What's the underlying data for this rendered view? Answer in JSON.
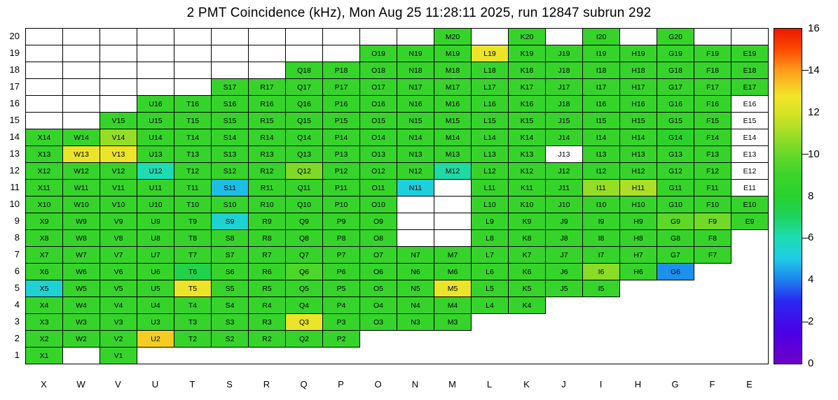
{
  "title": "2 PMT Coincidence (kHz), Mon Aug 25 11:28:11 2025, run 12847 subrun 292",
  "run_info": {
    "run": "12847",
    "subrun": "292",
    "timestamp": "Mon Aug 25 11:28:11 2025"
  },
  "chart_data": {
    "type": "heatmap",
    "title": "2 PMT Coincidence (kHz), Mon Aug 25 11:28:11 2025, run 12847 subrun 292",
    "unit": "kHz",
    "xlabel": "",
    "ylabel": "",
    "x_categories": [
      "X",
      "W",
      "V",
      "U",
      "T",
      "S",
      "R",
      "Q",
      "P",
      "O",
      "N",
      "M",
      "L",
      "K",
      "J",
      "I",
      "H",
      "G",
      "F",
      "E"
    ],
    "row_numbers": [
      20,
      19,
      18,
      17,
      16,
      15,
      14,
      13,
      12,
      11,
      10,
      9,
      8,
      7,
      6,
      5,
      4,
      3,
      2,
      1
    ],
    "grid": true,
    "legend_position": "right-colorbar",
    "colorbar": {
      "min": 0,
      "max": 16,
      "tick_values": [
        0,
        2,
        4,
        6,
        8,
        10,
        12,
        14,
        16
      ],
      "major_tick_values": [
        2,
        6,
        10,
        14
      ],
      "gradient_stops": [
        [
          0,
          "#6e00c8"
        ],
        [
          1.5,
          "#4b00e6"
        ],
        [
          3,
          "#2929f0"
        ],
        [
          4,
          "#1e82f0"
        ],
        [
          5,
          "#1ecce6"
        ],
        [
          6,
          "#1edcb4"
        ],
        [
          7,
          "#1ed25f"
        ],
        [
          8,
          "#28d22d"
        ],
        [
          9,
          "#3ad42a"
        ],
        [
          10,
          "#66d828"
        ],
        [
          11,
          "#a2de26"
        ],
        [
          12,
          "#d8e426"
        ],
        [
          12.8,
          "#f2e428"
        ],
        [
          14,
          "#ff9c1c"
        ],
        [
          15,
          "#ff4a00"
        ],
        [
          16,
          "#eb1800"
        ]
      ]
    },
    "cell_legend": {
      "number": "cell rate in kHz (estimated from color scale)",
      "b": "empty cell with grid border",
      "w": "labeled cell with white (no-data) fill",
      "null": "blank area, no cell drawn"
    },
    "rows": [
      [
        "b",
        "b",
        "b",
        "b",
        "b",
        "b",
        "b",
        "b",
        "b",
        "b",
        "b",
        8.8,
        "b",
        8.8,
        "b",
        8.8,
        "b",
        8.8,
        "b",
        "b"
      ],
      [
        "b",
        "b",
        "b",
        "b",
        "b",
        "b",
        "b",
        "b",
        "b",
        8.8,
        8.8,
        8.8,
        12.6,
        8.8,
        8.8,
        8.8,
        8.8,
        8.8,
        8.8,
        8.8
      ],
      [
        "b",
        "b",
        "b",
        "b",
        "b",
        "b",
        "b",
        8.8,
        8.8,
        8.8,
        8.8,
        8.8,
        8.8,
        8.8,
        8.8,
        8.8,
        8.8,
        8.8,
        8.8,
        8.8
      ],
      [
        "b",
        "b",
        "b",
        "b",
        "b",
        8.8,
        8.8,
        8.8,
        8.8,
        8.8,
        8.8,
        8.8,
        8.8,
        8.8,
        8.8,
        8.8,
        8.8,
        8.8,
        8.8,
        8.8
      ],
      [
        "b",
        "b",
        "b",
        8.8,
        8.8,
        8.8,
        8.8,
        8.8,
        8.8,
        8.8,
        8.8,
        8.8,
        8.8,
        8.8,
        {
          "v": 8.8,
          "l": "J18"
        },
        8.8,
        8.8,
        8.8,
        8.8,
        "w"
      ],
      [
        "b",
        "b",
        8.8,
        8.8,
        8.8,
        8.8,
        8.8,
        8.8,
        8.8,
        8.8,
        8.8,
        8.8,
        8.8,
        8.8,
        8.8,
        8.8,
        8.8,
        8.8,
        8.8,
        "w"
      ],
      [
        8.8,
        8.8,
        10.8,
        8.8,
        8.8,
        8.8,
        8.8,
        8.8,
        8.8,
        8.8,
        8.8,
        8.8,
        8.8,
        8.8,
        8.8,
        8.8,
        8.8,
        8.2,
        8.8,
        "w"
      ],
      [
        8.8,
        12.6,
        12.6,
        8.8,
        8.8,
        8.8,
        8.8,
        8.8,
        8.8,
        8.8,
        8.8,
        8.8,
        8.8,
        8.8,
        "w",
        8.8,
        8.8,
        8.8,
        8.8,
        "w"
      ],
      [
        8.8,
        8.8,
        8.8,
        6,
        8.8,
        8.8,
        8.8,
        10.4,
        8.8,
        8.8,
        8.8,
        6.2,
        8.8,
        8.8,
        8.8,
        8.8,
        8.8,
        8.8,
        8.8,
        "w"
      ],
      [
        8.8,
        8.8,
        8.8,
        8.8,
        8.8,
        4.8,
        8.8,
        8.8,
        8.8,
        8.8,
        5.2,
        "b",
        8.8,
        8.8,
        8.8,
        10.8,
        11.2,
        8.8,
        8.8,
        "w"
      ],
      [
        8.8,
        8.8,
        8.8,
        8.8,
        8.8,
        8.8,
        8.8,
        8.8,
        8.8,
        8.8,
        "b",
        "b",
        8.8,
        8.8,
        8.8,
        8.8,
        8.8,
        8.8,
        8.8,
        8.8
      ],
      [
        8.8,
        8.8,
        8.8,
        8.8,
        8.8,
        5.4,
        8.8,
        8.8,
        8.8,
        8.8,
        "b",
        "b",
        8.8,
        8.8,
        8.8,
        8.8,
        8.8,
        9.8,
        10.2,
        8.8
      ],
      [
        8.8,
        8.8,
        8.8,
        8.8,
        8.8,
        8.8,
        8.8,
        8.8,
        8.8,
        8.8,
        "b",
        "b",
        8.8,
        8.8,
        8.8,
        8.8,
        8.8,
        8.8,
        8.8,
        null
      ],
      [
        8.8,
        8.8,
        8.8,
        8.8,
        8.8,
        8.8,
        8.8,
        8.8,
        8.8,
        8.8,
        8.8,
        8.8,
        8.8,
        8.8,
        8.8,
        8.8,
        8.8,
        8.8,
        8.8,
        null
      ],
      [
        8.8,
        8.8,
        8.8,
        8.8,
        7.4,
        8.8,
        8.8,
        9.4,
        8.8,
        8.8,
        8.8,
        8.8,
        8.8,
        8.8,
        8.8,
        10.6,
        8.8,
        4.2,
        null,
        null
      ],
      [
        5.4,
        8.8,
        8.8,
        8.8,
        12.6,
        8.8,
        8.8,
        8.8,
        8.8,
        8.8,
        8.8,
        12.6,
        8.8,
        8.8,
        8.8,
        8.8,
        null,
        null,
        null,
        null
      ],
      [
        8.8,
        8.8,
        8.8,
        8.8,
        8.8,
        8.8,
        8.8,
        8.8,
        8.8,
        8.8,
        8.8,
        8.8,
        8.8,
        8.8,
        null,
        null,
        null,
        null,
        null,
        null
      ],
      [
        8.8,
        8.8,
        8.8,
        8.8,
        8.8,
        8.8,
        8.8,
        12.6,
        8.8,
        8.8,
        8.8,
        8.8,
        null,
        null,
        null,
        null,
        null,
        null,
        null,
        null
      ],
      [
        8.8,
        8.8,
        8.8,
        13.2,
        8.8,
        8.8,
        8.8,
        8.8,
        8.8,
        null,
        null,
        null,
        null,
        null,
        null,
        null,
        null,
        null,
        null,
        null
      ],
      [
        8.8,
        null,
        8.8,
        null,
        null,
        null,
        null,
        null,
        null,
        null,
        null,
        null,
        null,
        null,
        null,
        null,
        null,
        null,
        null,
        null
      ]
    ]
  }
}
